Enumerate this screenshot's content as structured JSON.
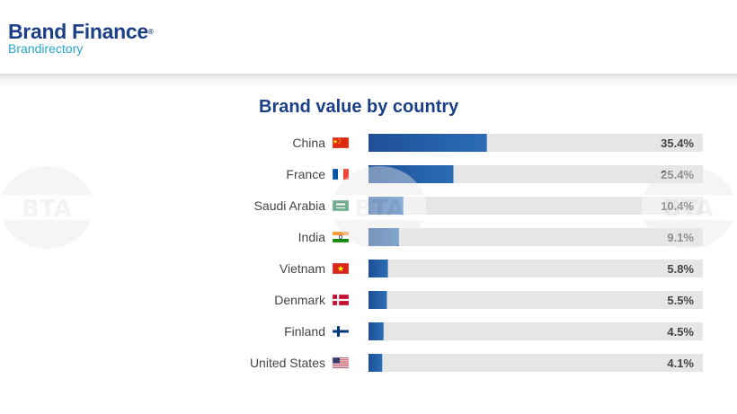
{
  "header": {
    "brand_name": "Brand Finance",
    "brand_registered": "®",
    "brand_subtitle": "Brandirectory"
  },
  "watermark": {
    "text": "BTA"
  },
  "chart_data": {
    "type": "bar",
    "orientation": "horizontal",
    "title": "Brand value by country",
    "categories": [
      "China",
      "France",
      "Saudi Arabia",
      "India",
      "Vietnam",
      "Denmark",
      "Finland",
      "United States"
    ],
    "flags": [
      "china-flag-icon",
      "france-flag-icon",
      "saudi-arabia-flag-icon",
      "india-flag-icon",
      "vietnam-flag-icon",
      "denmark-flag-icon",
      "finland-flag-icon",
      "united-states-flag-icon"
    ],
    "values": [
      35.4,
      25.4,
      10.4,
      9.1,
      5.8,
      5.5,
      4.5,
      4.1
    ],
    "value_labels": [
      "35.4%",
      "25.4%",
      "10.4%",
      "9.1%",
      "5.8%",
      "5.5%",
      "4.5%",
      "4.1%"
    ],
    "xlim": [
      0,
      100
    ],
    "unit": "%",
    "colors": {
      "bar": "#1f4f96",
      "bar_gradient_end": "#2a6db5",
      "track": "#e6e6e6",
      "title": "#1b3f86"
    }
  }
}
